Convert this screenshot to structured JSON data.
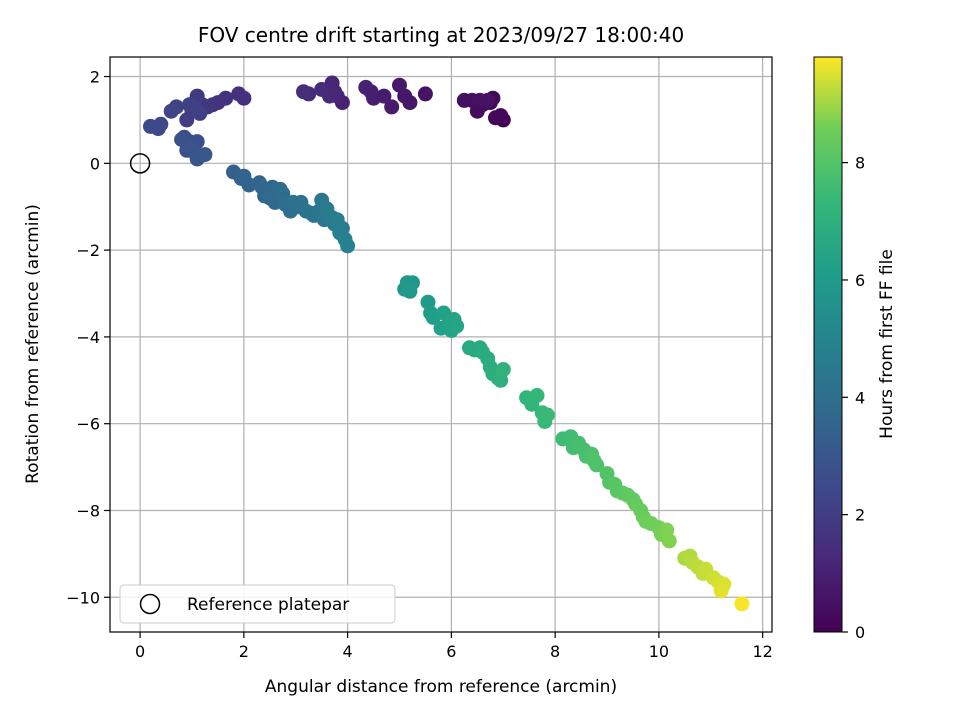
{
  "chart_data": {
    "type": "scatter",
    "title": "FOV centre drift starting at 2023/09/27 18:00:40",
    "xlabel": "Angular distance from reference (arcmin)",
    "ylabel": "Rotation from reference (arcmin)",
    "xlim": [
      -0.58,
      12.18
    ],
    "ylim": [
      -10.8,
      2.45
    ],
    "xticks": [
      0,
      2,
      4,
      6,
      8,
      10,
      12
    ],
    "yticks": [
      -10,
      -8,
      -6,
      -4,
      -2,
      0,
      2
    ],
    "x_tick_labels": [
      "0",
      "2",
      "4",
      "6",
      "8",
      "10",
      "12"
    ],
    "y_tick_labels": [
      "−10",
      "−8",
      "−6",
      "−4",
      "−2",
      "0",
      "2"
    ],
    "grid": true,
    "colormap": "viridis",
    "colorbar": {
      "label": "Hours from first FF file",
      "range": [
        0,
        9.8
      ],
      "ticks": [
        0,
        2,
        4,
        6,
        8
      ],
      "tick_labels": [
        "0",
        "2",
        "4",
        "6",
        "8"
      ]
    },
    "reference_point": {
      "x": 0,
      "y": 0,
      "label": "Reference platepar"
    },
    "legend_position": "lower-left",
    "points": [
      [
        7.0,
        1.0,
        0.05
      ],
      [
        6.95,
        1.1,
        0.1
      ],
      [
        6.85,
        1.05,
        0.15
      ],
      [
        6.75,
        1.4,
        0.2
      ],
      [
        6.8,
        1.5,
        0.25
      ],
      [
        6.6,
        1.35,
        0.3
      ],
      [
        6.5,
        1.2,
        0.35
      ],
      [
        6.4,
        1.45,
        0.4
      ],
      [
        6.25,
        1.45,
        0.45
      ],
      [
        6.55,
        1.45,
        0.5
      ],
      [
        6.7,
        1.45,
        0.55
      ],
      [
        5.5,
        1.6,
        0.6
      ],
      [
        5.2,
        1.4,
        0.65
      ],
      [
        5.1,
        1.55,
        0.7
      ],
      [
        5.0,
        1.8,
        0.75
      ],
      [
        4.85,
        1.3,
        0.8
      ],
      [
        4.7,
        1.55,
        0.85
      ],
      [
        4.5,
        1.5,
        0.9
      ],
      [
        4.45,
        1.65,
        0.95
      ],
      [
        4.35,
        1.75,
        1.0
      ],
      [
        3.9,
        1.4,
        1.05
      ],
      [
        3.8,
        1.55,
        1.1
      ],
      [
        3.75,
        1.65,
        1.15
      ],
      [
        3.7,
        1.85,
        1.2
      ],
      [
        3.65,
        1.55,
        1.25
      ],
      [
        3.5,
        1.7,
        1.3
      ],
      [
        3.25,
        1.6,
        1.35
      ],
      [
        3.15,
        1.65,
        1.4
      ],
      [
        2.0,
        1.5,
        1.5
      ],
      [
        1.9,
        1.6,
        1.55
      ],
      [
        1.65,
        1.5,
        1.6
      ],
      [
        1.5,
        1.4,
        1.65
      ],
      [
        1.4,
        1.35,
        1.7
      ],
      [
        1.3,
        1.3,
        1.75
      ],
      [
        1.2,
        1.35,
        1.8
      ],
      [
        1.1,
        1.4,
        1.85
      ],
      [
        1.1,
        1.55,
        1.9
      ],
      [
        1.0,
        1.2,
        1.95
      ],
      [
        0.9,
        1.0,
        2.0
      ],
      [
        1.05,
        1.3,
        2.05
      ],
      [
        1.15,
        1.15,
        2.1
      ],
      [
        0.95,
        1.35,
        2.15
      ],
      [
        0.7,
        1.3,
        2.2
      ],
      [
        0.6,
        1.2,
        2.3
      ],
      [
        0.4,
        0.9,
        2.4
      ],
      [
        0.35,
        0.8,
        2.45
      ],
      [
        0.2,
        0.85,
        2.5
      ],
      [
        0.85,
        0.6,
        2.6
      ],
      [
        0.95,
        0.5,
        2.65
      ],
      [
        1.1,
        0.5,
        2.7
      ],
      [
        0.8,
        0.55,
        2.75
      ],
      [
        0.9,
        0.3,
        2.8
      ],
      [
        1.0,
        0.35,
        2.85
      ],
      [
        1.05,
        0.25,
        2.9
      ],
      [
        1.1,
        0.1,
        2.95
      ],
      [
        1.25,
        0.2,
        3.0
      ],
      [
        1.8,
        -0.2,
        3.3
      ],
      [
        1.95,
        -0.35,
        3.4
      ],
      [
        2.1,
        -0.5,
        3.45
      ],
      [
        2.0,
        -0.3,
        3.5
      ],
      [
        2.3,
        -0.45,
        3.55
      ],
      [
        2.35,
        -0.55,
        3.6
      ],
      [
        2.4,
        -0.75,
        3.65
      ],
      [
        2.55,
        -0.55,
        3.7
      ],
      [
        2.5,
        -0.8,
        3.75
      ],
      [
        2.6,
        -0.9,
        3.8
      ],
      [
        2.7,
        -0.6,
        3.85
      ],
      [
        2.75,
        -0.7,
        3.9
      ],
      [
        2.8,
        -0.95,
        3.95
      ],
      [
        2.9,
        -1.1,
        4.0
      ],
      [
        2.95,
        -0.9,
        4.05
      ],
      [
        3.05,
        -1.0,
        4.1
      ],
      [
        3.1,
        -0.9,
        4.15
      ],
      [
        3.2,
        -1.1,
        4.2
      ],
      [
        3.3,
        -1.15,
        4.25
      ],
      [
        3.35,
        -1.2,
        4.3
      ],
      [
        3.45,
        -1.1,
        4.35
      ],
      [
        3.5,
        -0.85,
        4.4
      ],
      [
        3.55,
        -1.3,
        4.45
      ],
      [
        3.6,
        -1.05,
        4.5
      ],
      [
        3.7,
        -1.25,
        4.55
      ],
      [
        3.75,
        -1.4,
        4.6
      ],
      [
        3.8,
        -1.3,
        4.65
      ],
      [
        3.9,
        -1.5,
        4.7
      ],
      [
        3.95,
        -1.75,
        4.75
      ],
      [
        3.85,
        -1.6,
        4.8
      ],
      [
        4.0,
        -1.9,
        4.85
      ],
      [
        5.1,
        -2.9,
        5.8
      ],
      [
        5.15,
        -2.75,
        5.85
      ],
      [
        5.25,
        -2.75,
        5.9
      ],
      [
        5.2,
        -2.95,
        5.95
      ],
      [
        5.55,
        -3.2,
        6.0
      ],
      [
        5.6,
        -3.45,
        6.1
      ],
      [
        5.65,
        -3.55,
        6.15
      ],
      [
        5.8,
        -3.8,
        6.2
      ],
      [
        5.85,
        -3.45,
        6.25
      ],
      [
        5.95,
        -3.7,
        6.3
      ],
      [
        6.0,
        -3.85,
        6.35
      ],
      [
        6.05,
        -3.6,
        6.4
      ],
      [
        6.1,
        -3.75,
        6.45
      ],
      [
        6.35,
        -4.25,
        6.6
      ],
      [
        6.45,
        -4.3,
        6.65
      ],
      [
        6.55,
        -4.25,
        6.7
      ],
      [
        6.6,
        -4.35,
        6.75
      ],
      [
        6.7,
        -4.5,
        6.8
      ],
      [
        6.75,
        -4.7,
        6.85
      ],
      [
        6.8,
        -4.85,
        6.9
      ],
      [
        6.9,
        -4.95,
        6.95
      ],
      [
        6.95,
        -5.0,
        7.0
      ],
      [
        7.0,
        -4.75,
        7.05
      ],
      [
        7.45,
        -5.4,
        7.2
      ],
      [
        7.55,
        -5.55,
        7.25
      ],
      [
        7.65,
        -5.35,
        7.3
      ],
      [
        7.75,
        -5.75,
        7.35
      ],
      [
        7.8,
        -5.95,
        7.4
      ],
      [
        7.85,
        -5.8,
        7.45
      ],
      [
        8.15,
        -6.35,
        7.55
      ],
      [
        8.3,
        -6.3,
        7.6
      ],
      [
        8.35,
        -6.55,
        7.65
      ],
      [
        8.45,
        -6.45,
        7.7
      ],
      [
        8.55,
        -6.6,
        7.75
      ],
      [
        8.6,
        -6.75,
        7.8
      ],
      [
        8.7,
        -6.7,
        7.85
      ],
      [
        8.8,
        -6.95,
        7.9
      ],
      [
        8.75,
        -6.85,
        7.95
      ],
      [
        9.0,
        -7.15,
        8.0
      ],
      [
        9.05,
        -7.35,
        8.05
      ],
      [
        9.15,
        -7.4,
        8.1
      ],
      [
        9.2,
        -7.55,
        8.15
      ],
      [
        9.3,
        -7.6,
        8.2
      ],
      [
        9.4,
        -7.65,
        8.25
      ],
      [
        9.5,
        -7.75,
        8.3
      ],
      [
        9.55,
        -7.85,
        8.35
      ],
      [
        9.65,
        -8.0,
        8.4
      ],
      [
        9.7,
        -8.15,
        8.45
      ],
      [
        9.75,
        -8.25,
        8.5
      ],
      [
        9.85,
        -8.3,
        8.55
      ],
      [
        10.0,
        -8.4,
        8.6
      ],
      [
        10.05,
        -8.55,
        8.65
      ],
      [
        10.15,
        -8.45,
        8.7
      ],
      [
        10.2,
        -8.7,
        8.75
      ],
      [
        10.5,
        -9.1,
        9.1
      ],
      [
        10.6,
        -9.05,
        9.15
      ],
      [
        10.65,
        -9.2,
        9.2
      ],
      [
        10.75,
        -9.3,
        9.25
      ],
      [
        10.85,
        -9.45,
        9.3
      ],
      [
        10.9,
        -9.35,
        9.35
      ],
      [
        11.05,
        -9.55,
        9.4
      ],
      [
        11.15,
        -9.65,
        9.45
      ],
      [
        11.25,
        -9.7,
        9.5
      ],
      [
        11.2,
        -9.85,
        9.55
      ],
      [
        11.6,
        -10.15,
        9.75
      ]
    ]
  }
}
